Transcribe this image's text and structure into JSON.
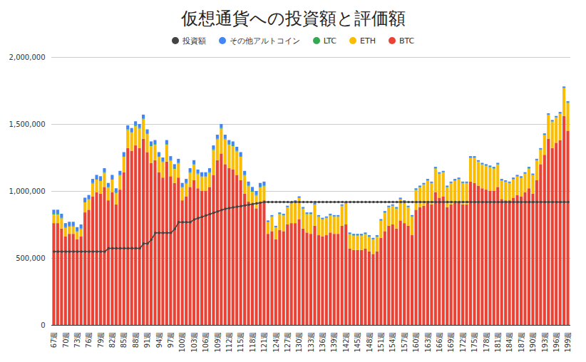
{
  "chart_data": {
    "type": "bar",
    "title": "仮想通貨への投資額と評価額",
    "stacked": true,
    "grid": true,
    "legend": "top",
    "categories": [
      "67週",
      null,
      null,
      "70週",
      null,
      null,
      "73週",
      null,
      null,
      "76週",
      null,
      null,
      "79週",
      null,
      null,
      "82週",
      null,
      null,
      "85週",
      null,
      null,
      "88週",
      null,
      null,
      "91週",
      null,
      null,
      "94週",
      null,
      null,
      "97週",
      null,
      null,
      "100週",
      null,
      null,
      "103週",
      null,
      null,
      "106週",
      null,
      null,
      "109週",
      null,
      null,
      "112週",
      null,
      null,
      "115週",
      null,
      null,
      "118週",
      null,
      null,
      "121週",
      null,
      null,
      "124週",
      null,
      null,
      "127週",
      null,
      null,
      "130週",
      null,
      null,
      "133週",
      null,
      null,
      "136週",
      null,
      null,
      "139週",
      null,
      null,
      "142週",
      null,
      null,
      "145週",
      null,
      null,
      "148週",
      null,
      null,
      "151週",
      null,
      null,
      "154週",
      null,
      null,
      "157週",
      null,
      null,
      "160週",
      null,
      null,
      "163週",
      null,
      null,
      "166週",
      null,
      null,
      "169週",
      null,
      null,
      "172週",
      null,
      null,
      "175週",
      null,
      null,
      "178週",
      null,
      null,
      "181週",
      null,
      null,
      "184週",
      null,
      null,
      "187週",
      null,
      null,
      "190週",
      null,
      null,
      "193週",
      null,
      null,
      "196週",
      null,
      null,
      "199週"
    ],
    "ylim": [
      0,
      2000000
    ],
    "yticks": [
      0,
      {
        "value": 500000,
        "label": "500,000"
      },
      {
        "value": 1000000,
        "label": "1,000,000"
      },
      {
        "value": 1500000,
        "label": "1,500,000"
      },
      {
        "value": 2000000,
        "label": "2,000,000"
      }
    ],
    "series": [
      {
        "name": "BTC",
        "type": "bar",
        "color": "#ea4335",
        "values": [
          760000,
          760000,
          720000,
          660000,
          680000,
          680000,
          640000,
          660000,
          840000,
          860000,
          960000,
          990000,
          980000,
          1030000,
          930000,
          990000,
          900000,
          1010000,
          1140000,
          1320000,
          1300000,
          1340000,
          1320000,
          1390000,
          1290000,
          1210000,
          1230000,
          1140000,
          1100000,
          1220000,
          1110000,
          1060000,
          1100000,
          930000,
          960000,
          1030000,
          1080000,
          1020000,
          1000000,
          1000000,
          1030000,
          1120000,
          1230000,
          1280000,
          1200000,
          1170000,
          1160000,
          1120000,
          1080000,
          980000,
          920000,
          900000,
          870000,
          920000,
          930000,
          680000,
          700000,
          640000,
          710000,
          700000,
          750000,
          760000,
          760000,
          790000,
          720000,
          690000,
          680000,
          740000,
          670000,
          660000,
          670000,
          690000,
          680000,
          680000,
          740000,
          750000,
          570000,
          560000,
          560000,
          560000,
          570000,
          550000,
          530000,
          550000,
          650000,
          700000,
          740000,
          750000,
          720000,
          780000,
          760000,
          740000,
          670000,
          860000,
          880000,
          890000,
          910000,
          900000,
          990000,
          950000,
          960000,
          880000,
          900000,
          910000,
          920000,
          900000,
          900000,
          1070000,
          1060000,
          1040000,
          1020000,
          1010000,
          1000000,
          1000000,
          1030000,
          940000,
          930000,
          930000,
          950000,
          970000,
          960000,
          990000,
          1020000,
          980000,
          1080000,
          1200000,
          1270000,
          1390000,
          1320000,
          1360000,
          1380000,
          1560000,
          1450000
        ]
      },
      {
        "name": "ETH",
        "type": "bar",
        "color": "#fbbc04",
        "values": [
          65000,
          65000,
          75000,
          65000,
          55000,
          55000,
          55000,
          55000,
          75000,
          75000,
          95000,
          95000,
          95000,
          105000,
          95000,
          95000,
          85000,
          105000,
          115000,
          135000,
          135000,
          145000,
          145000,
          145000,
          135000,
          125000,
          115000,
          115000,
          115000,
          125000,
          115000,
          105000,
          105000,
          95000,
          95000,
          105000,
          115000,
          105000,
          105000,
          105000,
          105000,
          185000,
          155000,
          185000,
          185000,
          175000,
          175000,
          175000,
          175000,
          135000,
          115000,
          95000,
          95000,
          105000,
          105000,
          87000,
          107000,
          87000,
          117000,
          117000,
          127000,
          147000,
          157000,
          157000,
          147000,
          137000,
          147000,
          157000,
          137000,
          127000,
          127000,
          127000,
          127000,
          127000,
          147000,
          157000,
          107000,
          107000,
          107000,
          107000,
          107000,
          107000,
          107000,
          107000,
          127000,
          137000,
          137000,
          137000,
          147000,
          157000,
          157000,
          137000,
          137000,
          147000,
          147000,
          157000,
          167000,
          157000,
          177000,
          177000,
          177000,
          147000,
          157000,
          167000,
          167000,
          157000,
          157000,
          177000,
          187000,
          177000,
          177000,
          177000,
          177000,
          167000,
          167000,
          137000,
          137000,
          127000,
          137000,
          137000,
          137000,
          137000,
          147000,
          137000,
          147000,
          107000,
          147000,
          177000,
          197000,
          187000,
          197000,
          207000,
          207000
        ]
      },
      {
        "name": "LTC",
        "type": "bar",
        "color": "#34a853",
        "values": [
          5000,
          5000,
          5000,
          5000,
          5000,
          5000,
          5000,
          5000,
          5000,
          5000,
          5000,
          5000,
          5000,
          5000,
          5000,
          5000,
          5000,
          5000,
          5000,
          5000,
          5000,
          5000,
          5000,
          5000,
          5000,
          5000,
          5000,
          5000,
          5000,
          5000,
          5000,
          5000,
          5000,
          5000,
          5000,
          5000,
          5000,
          5000,
          5000,
          5000,
          5000,
          5000,
          5000,
          5000,
          5000,
          5000,
          5000,
          5000,
          5000,
          5000,
          5000,
          5000,
          5000,
          5000,
          5000,
          3000,
          3000,
          3000,
          3000,
          3000,
          3000,
          3000,
          3000,
          3000,
          3000,
          3000,
          3000,
          3000,
          3000,
          3000,
          3000,
          3000,
          3000,
          3000,
          3000,
          3000,
          3000,
          3000,
          3000,
          3000,
          3000,
          3000,
          3000,
          3000,
          3000,
          3000,
          3000,
          3000,
          3000,
          3000,
          3000,
          3000,
          3000,
          3000,
          3000,
          3000,
          3000,
          3000,
          3000,
          3000,
          3000,
          3000,
          3000,
          3000,
          3000,
          3000,
          3000,
          3000,
          3000,
          3000,
          3000,
          3000,
          3000,
          3000,
          3000,
          3000,
          3000,
          3000,
          3000,
          3000,
          3000,
          3000,
          3000,
          3000,
          3000,
          3000,
          3000,
          3000,
          3000,
          3000,
          3000,
          3000,
          3000
        ]
      },
      {
        "name": "その他アルトコイン",
        "type": "bar",
        "color": "#4285f4",
        "values": [
          30000,
          30000,
          30000,
          30000,
          30000,
          30000,
          30000,
          30000,
          30000,
          30000,
          30000,
          30000,
          30000,
          30000,
          30000,
          30000,
          30000,
          30000,
          30000,
          30000,
          30000,
          30000,
          30000,
          30000,
          30000,
          30000,
          30000,
          30000,
          30000,
          30000,
          30000,
          30000,
          30000,
          30000,
          30000,
          30000,
          30000,
          30000,
          30000,
          30000,
          30000,
          30000,
          30000,
          30000,
          30000,
          30000,
          30000,
          30000,
          30000,
          30000,
          30000,
          30000,
          30000,
          30000,
          30000,
          10000,
          10000,
          10000,
          10000,
          10000,
          10000,
          10000,
          10000,
          10000,
          10000,
          10000,
          10000,
          10000,
          10000,
          10000,
          10000,
          10000,
          10000,
          10000,
          10000,
          10000,
          10000,
          10000,
          10000,
          10000,
          10000,
          10000,
          10000,
          10000,
          10000,
          10000,
          10000,
          10000,
          10000,
          10000,
          10000,
          10000,
          10000,
          10000,
          10000,
          10000,
          10000,
          10000,
          10000,
          10000,
          10000,
          10000,
          10000,
          10000,
          10000,
          10000,
          10000,
          10000,
          10000,
          10000,
          10000,
          10000,
          10000,
          10000,
          10000,
          10000,
          10000,
          10000,
          10000,
          10000,
          10000,
          10000,
          10000,
          10000,
          10000,
          10000,
          10000,
          10000,
          10000,
          10000,
          10000,
          10000,
          10000
        ]
      },
      {
        "name": "投資額",
        "type": "line",
        "marker": "circle",
        "color": "#434343",
        "values": [
          550000,
          550000,
          550000,
          550000,
          550000,
          550000,
          550000,
          550000,
          550000,
          550000,
          550000,
          550000,
          550000,
          550000,
          575000,
          575000,
          575000,
          575000,
          575000,
          575000,
          575000,
          575000,
          575000,
          610000,
          610000,
          640000,
          690000,
          690000,
          690000,
          690000,
          690000,
          720000,
          770000,
          770000,
          770000,
          770000,
          790000,
          800000,
          810000,
          820000,
          830000,
          840000,
          850000,
          860000,
          870000,
          875000,
          880000,
          885000,
          890000,
          895000,
          900000,
          905000,
          910000,
          915000,
          920000,
          920000,
          920000,
          920000,
          920000,
          920000,
          920000,
          920000,
          920000,
          920000,
          920000,
          920000,
          920000,
          920000,
          920000,
          920000,
          920000,
          920000,
          920000,
          920000,
          920000,
          920000,
          920000,
          920000,
          920000,
          920000,
          920000,
          920000,
          920000,
          920000,
          920000,
          920000,
          920000,
          920000,
          920000,
          920000,
          920000,
          920000,
          920000,
          920000,
          920000,
          920000,
          920000,
          920000,
          920000,
          920000,
          920000,
          920000,
          920000,
          920000,
          920000,
          920000,
          920000,
          920000,
          920000,
          920000,
          920000,
          920000,
          920000,
          920000,
          920000,
          920000,
          920000,
          920000,
          920000,
          920000,
          920000,
          920000,
          920000,
          920000,
          920000,
          920000,
          920000,
          920000,
          920000,
          920000,
          920000,
          920000,
          920000
        ]
      }
    ]
  }
}
